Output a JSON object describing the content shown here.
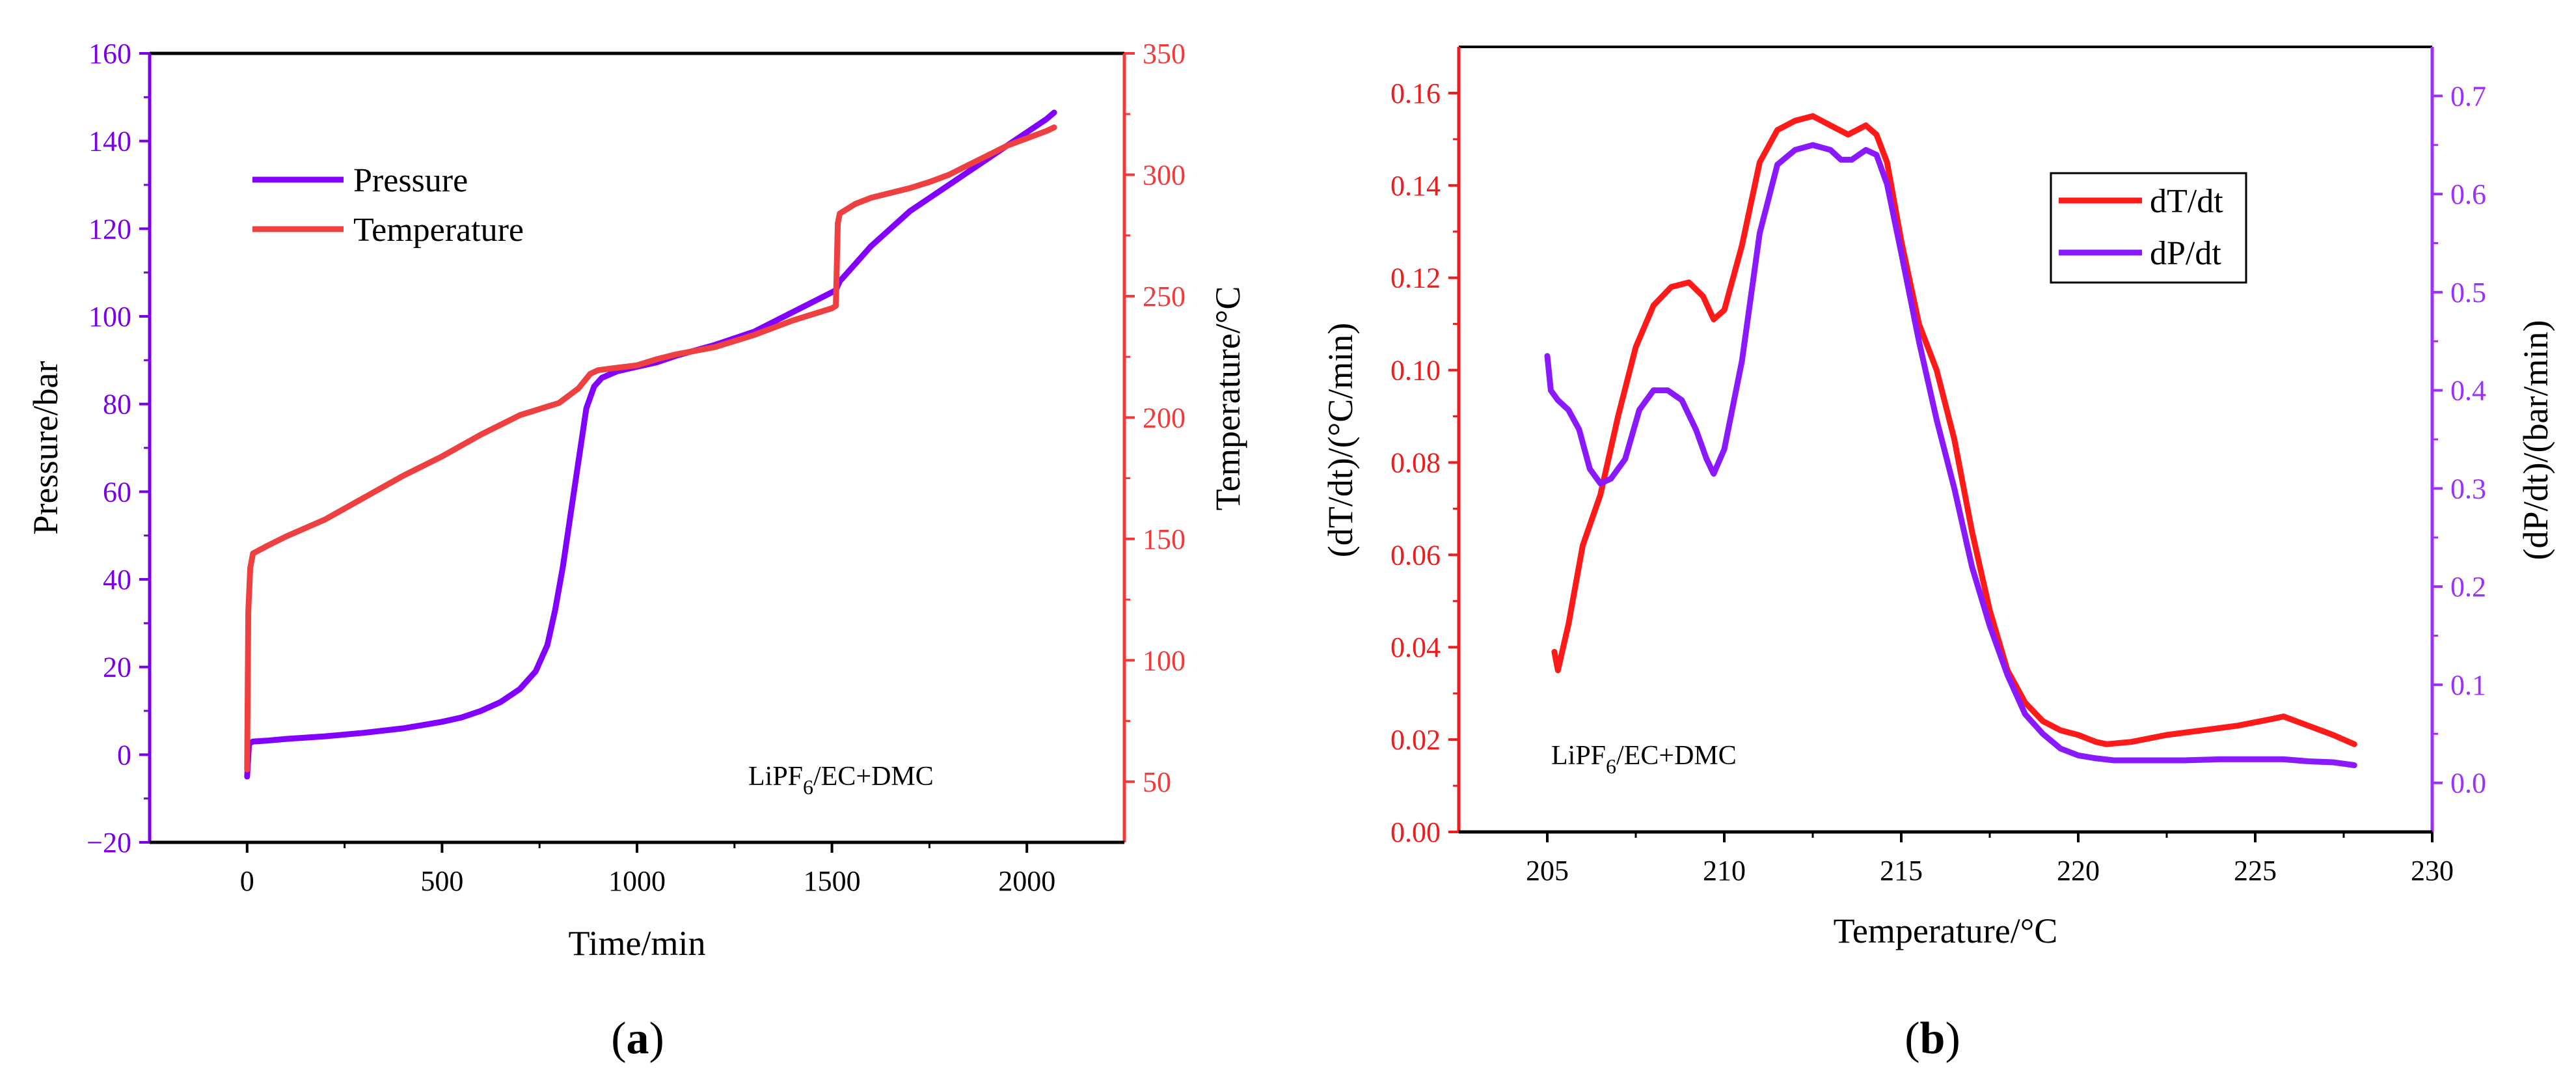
{
  "chart_data": [
    {
      "type": "line",
      "panel": "a",
      "panel_label": {
        "open": "(",
        "letter": "a",
        "close": ")"
      },
      "xlabel": "Time/min",
      "ylabel_left": "Pressure/bar",
      "ylabel_right": "Temperature/°C",
      "xlim": [
        -250,
        2250
      ],
      "ylim_left": [
        -20,
        160
      ],
      "ylim_right": [
        25,
        350
      ],
      "x_ticks": [
        0,
        500,
        1000,
        1500,
        2000
      ],
      "y_left_ticks": [
        -20,
        0,
        20,
        40,
        60,
        80,
        100,
        120,
        140,
        160
      ],
      "y_right_ticks": [
        50,
        100,
        150,
        200,
        250,
        300,
        350
      ],
      "x_tick_labels": [
        "0",
        "500",
        "1000",
        "1500",
        "2000"
      ],
      "y_left_tick_labels": [
        "−20",
        "0",
        "20",
        "40",
        "60",
        "80",
        "100",
        "120",
        "140",
        "160"
      ],
      "y_right_tick_labels": [
        "50",
        "100",
        "150",
        "200",
        "250",
        "300",
        "350"
      ],
      "legend": {
        "placement": "top-left",
        "entries": [
          "Pressure",
          "Temperature"
        ]
      },
      "annotation": {
        "base": "LiPF",
        "sub": "6",
        "rest": "/EC+DMC"
      },
      "colors": {
        "left_axis": "#7b00e8",
        "right_axis": "#f23a3a",
        "pressure": "#8100ff",
        "temperature": "#ee4040"
      },
      "series": [
        {
          "name": "Pressure",
          "axis": "left",
          "x": [
            0,
            5,
            15,
            50,
            100,
            200,
            300,
            400,
            500,
            550,
            600,
            650,
            700,
            740,
            770,
            790,
            810,
            830,
            850,
            870,
            890,
            910,
            950,
            1000,
            1050,
            1100,
            1200,
            1300,
            1400,
            1500,
            1510,
            1520,
            1560,
            1600,
            1650,
            1700,
            1750,
            1800,
            1850,
            1900,
            1950,
            2000,
            2050,
            2070
          ],
          "y": [
            -5,
            2.5,
            3,
            3.2,
            3.6,
            4.2,
            5,
            6,
            7.5,
            8.5,
            10,
            12,
            15,
            19,
            25,
            33,
            43,
            55,
            67,
            79,
            84,
            86,
            87.5,
            88.5,
            89.5,
            91,
            93.5,
            96.5,
            101,
            105.5,
            106,
            108,
            112,
            116,
            120,
            124,
            127,
            130,
            133,
            136,
            139,
            142,
            145,
            146.5
          ]
        },
        {
          "name": "Temperature",
          "axis": "right",
          "x": [
            0,
            3,
            8,
            15,
            50,
            100,
            200,
            300,
            400,
            500,
            600,
            700,
            800,
            850,
            880,
            900,
            950,
            1000,
            1050,
            1100,
            1200,
            1300,
            1400,
            1500,
            1510,
            1515,
            1520,
            1560,
            1600,
            1650,
            1700,
            1750,
            1800,
            1850,
            1900,
            1950,
            2000,
            2050,
            2070
          ],
          "y": [
            55,
            120,
            138,
            144,
            147,
            151,
            158,
            167,
            176,
            184,
            193,
            201,
            206,
            212,
            218,
            219.5,
            220.5,
            221.5,
            224,
            226,
            229,
            234,
            240,
            245,
            246,
            280,
            284,
            288,
            290.5,
            292.5,
            294.5,
            297,
            300,
            304,
            308,
            312,
            315,
            318,
            319.5
          ]
        }
      ]
    },
    {
      "type": "line",
      "panel": "b",
      "panel_label": {
        "open": "(",
        "letter": "b",
        "close": ")"
      },
      "xlabel": "Temperature/°C",
      "ylabel_left": "(dT/dt)/(°C/min)",
      "ylabel_right": "(dP/dt)/(bar/min)",
      "xlim": [
        202.5,
        230
      ],
      "ylim_left": [
        0.0,
        0.17
      ],
      "ylim_right": [
        -0.05,
        0.75
      ],
      "x_ticks": [
        205,
        210,
        215,
        220,
        225,
        230
      ],
      "y_left_ticks": [
        0.0,
        0.02,
        0.04,
        0.06,
        0.08,
        0.1,
        0.12,
        0.14,
        0.16
      ],
      "y_right_ticks": [
        0.0,
        0.1,
        0.2,
        0.3,
        0.4,
        0.5,
        0.6,
        0.7
      ],
      "x_tick_labels": [
        "205",
        "210",
        "215",
        "220",
        "225",
        "230"
      ],
      "y_left_tick_labels": [
        "0.00",
        "0.02",
        "0.04",
        "0.06",
        "0.08",
        "0.10",
        "0.12",
        "0.14",
        "0.16"
      ],
      "y_right_tick_labels": [
        "0.0",
        "0.1",
        "0.2",
        "0.3",
        "0.4",
        "0.5",
        "0.6",
        "0.7"
      ],
      "legend": {
        "placement": "top-right",
        "entries": [
          "dT/dt",
          "dP/dt"
        ]
      },
      "annotation": {
        "base": "LiPF",
        "sub": "6",
        "rest": "/EC+DMC"
      },
      "colors": {
        "left_axis": "#ee1c1c",
        "right_axis": "#9b30ff",
        "dTdt": "#ff1a1a",
        "dPdt": "#8a19ff"
      },
      "series": [
        {
          "name": "dT/dt",
          "axis": "left",
          "x": [
            205.2,
            205.3,
            205.6,
            206.0,
            206.5,
            207.0,
            207.5,
            208.0,
            208.5,
            209.0,
            209.4,
            209.7,
            210.0,
            210.5,
            211.0,
            211.5,
            212.0,
            212.5,
            213.0,
            213.5,
            214.0,
            214.3,
            214.6,
            215.0,
            215.5,
            216.0,
            216.5,
            217.0,
            217.5,
            218.0,
            218.5,
            219.0,
            219.5,
            220.0,
            220.5,
            220.8,
            221.5,
            222.5,
            223.5,
            224.5,
            225.5,
            225.8,
            226.5,
            227.2,
            227.8
          ],
          "y": [
            0.039,
            0.035,
            0.045,
            0.062,
            0.073,
            0.09,
            0.105,
            0.114,
            0.118,
            0.119,
            0.116,
            0.111,
            0.113,
            0.127,
            0.145,
            0.152,
            0.154,
            0.155,
            0.153,
            0.151,
            0.153,
            0.151,
            0.145,
            0.128,
            0.11,
            0.1,
            0.085,
            0.065,
            0.048,
            0.035,
            0.028,
            0.024,
            0.022,
            0.021,
            0.0195,
            0.019,
            0.0195,
            0.021,
            0.022,
            0.023,
            0.0245,
            0.025,
            0.023,
            0.021,
            0.019
          ]
        },
        {
          "name": "dP/dt",
          "axis": "right",
          "x": [
            205.0,
            205.1,
            205.3,
            205.6,
            205.9,
            206.2,
            206.5,
            206.8,
            207.2,
            207.6,
            208.0,
            208.4,
            208.8,
            209.2,
            209.5,
            209.7,
            210.0,
            210.5,
            211.0,
            211.5,
            212.0,
            212.5,
            213.0,
            213.3,
            213.6,
            214.0,
            214.3,
            214.6,
            215.0,
            215.5,
            216.0,
            216.5,
            217.0,
            217.5,
            218.0,
            218.5,
            219.0,
            219.5,
            220.0,
            220.5,
            221.0,
            222.0,
            223.0,
            224.0,
            225.0,
            225.8,
            226.5,
            227.2,
            227.8
          ],
          "y": [
            0.435,
            0.4,
            0.39,
            0.38,
            0.36,
            0.32,
            0.305,
            0.31,
            0.33,
            0.38,
            0.4,
            0.4,
            0.39,
            0.36,
            0.33,
            0.315,
            0.34,
            0.43,
            0.56,
            0.63,
            0.645,
            0.65,
            0.645,
            0.635,
            0.635,
            0.645,
            0.64,
            0.61,
            0.54,
            0.45,
            0.37,
            0.3,
            0.22,
            0.16,
            0.11,
            0.07,
            0.05,
            0.035,
            0.028,
            0.025,
            0.023,
            0.023,
            0.023,
            0.024,
            0.024,
            0.024,
            0.022,
            0.021,
            0.018
          ]
        }
      ]
    }
  ]
}
